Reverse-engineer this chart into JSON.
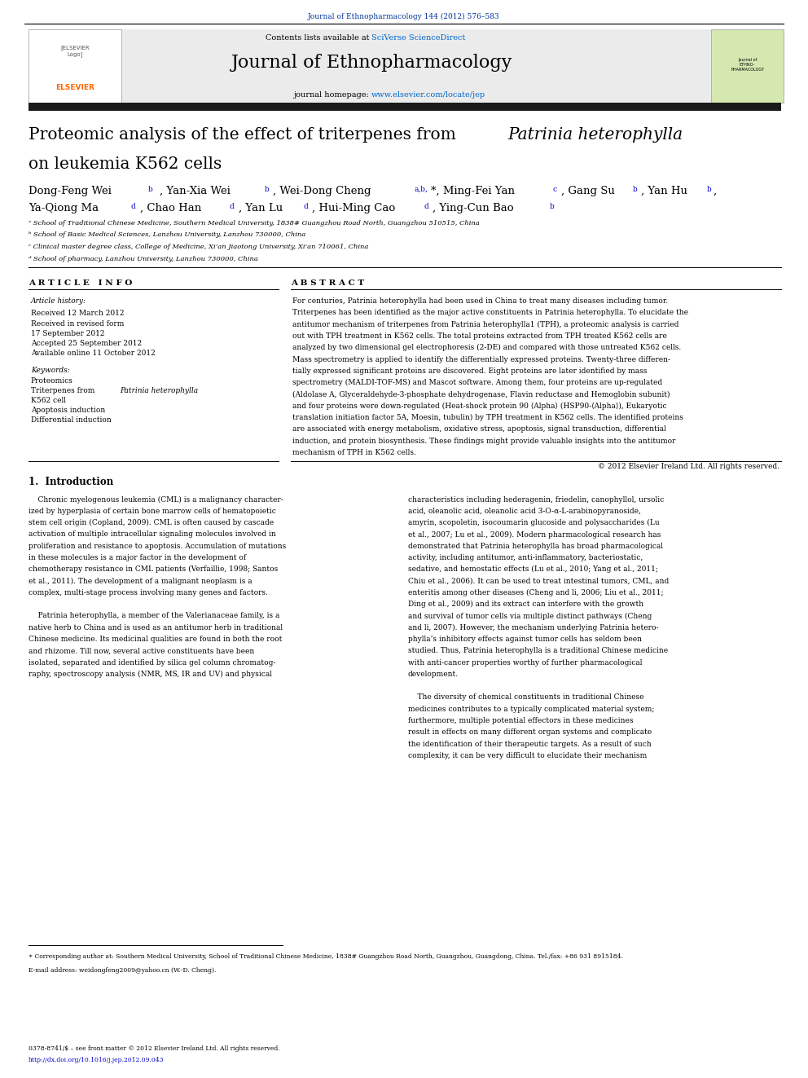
{
  "page_width": 9.92,
  "page_height": 13.23,
  "background_color": "#ffffff",
  "top_journal_ref": "Journal of Ethnopharmacology 144 (2012) 576–583",
  "top_journal_ref_color": "#003399",
  "header_bg": "#e8e8e8",
  "header_contents": "Contents lists available at",
  "header_sciversedirect": "SciVerse ScienceDirect",
  "header_sciversedirect_color": "#0066cc",
  "journal_name": "Journal of Ethnopharmacology",
  "journal_homepage_label": "journal homepage: ",
  "journal_homepage_url": "www.elsevier.com/locate/jep",
  "journal_homepage_url_color": "#0066cc",
  "thick_bar_color": "#1a1a1a",
  "article_title_line1": "Proteomic analysis of the effect of triterpenes from ",
  "article_title_italic": "Patrinia heterophylla",
  "article_title_line2": "on leukemia K562 cells",
  "authors_line1": "Dong-Feng Weiᵇ, Yan-Xia Weiᵇ, Wei-Dong Chengᵃ,ᵇ*, Ming-Fei Yanᶜ, Gang Suᵇ, Yan Huᵇ,",
  "authors_line2": "Ya-Qiong Maᵈ, Chao Hanᵈ, Yan Luᵈ, Hui-Ming Caoᵈ, Ying-Cun Baoᵇ",
  "affil_a": "ᵃ School of Traditional Chinese Medicine, Southern Medical University, 1838# Guangzhou Road North, Guangzhou 510515, China",
  "affil_b": "ᵇ School of Basic Medical Sciences, Lanzhou University, Lanzhou 730000, China",
  "affil_c": "ᶜ Clinical master degree class, College of Medicine, Xi’an Jiaotong University, Xi’an 710061, China",
  "affil_d": "ᵈ School of pharmacy, Lanzhou University, Lanzhou 730000, China",
  "article_info_header": "A R T I C L E   I N F O",
  "abstract_header": "A B S T R A C T",
  "article_history_label": "Article history:",
  "received1": "Received 12 March 2012",
  "received2": "Received in revised form",
  "received2b": "17 September 2012",
  "accepted": "Accepted 25 September 2012",
  "available": "Available online 11 October 2012",
  "keywords_label": "Keywords:",
  "kw1": "Proteomics",
  "kw2": "Triterpenes from Patrinia heterophylla",
  "kw3": "K562 cell",
  "kw4": "Apoptosis induction",
  "kw5": "Differential induction",
  "abstract_text": "For centuries, Patrinia heterophylla had been used in China to treat many diseases including tumor. Triterpenes has been identified as the major active constituents in Patrinia heterophylla. To elucidate the antitumor mechanism of triterpenes from Patrinia heterophylla1 (TPH), a proteomic analysis is carried out with TPH treatment in K562 cells. The total proteins extracted from TPH treated K562 cells are analyzed by two dimensional gel electrophoresis (2-DE) and compared with those untreated K562 cells. Mass spectrometry is applied to identify the differentially expressed proteins. Twenty-three differentially expressed significant proteins are discovered. Eight proteins are later identified by mass spectrometry (MALDI-TOF-MS) and Mascot software. Among them, four proteins are up-regulated (Aldolase A, Glyceraldehyde-3-phosphate dehydrogenase, Flavin reductase and Hemoglobin subunit) and four proteins were down-regulated (Heat-shock protein 90 ⟨Alpha⟩ (HSP90-⟨Alpha⟩), Eukaryotic translation initiation factor 5A, Moesin, tubulin) by TPH treatment in K562 cells. The identified proteins are associated with energy metabolism, oxidative stress, apoptosis, signal transduction, differential induction, and protein biosynthesis. These findings might provide valuable insights into the antitumor mechanism of TPH in K562 cells.",
  "copyright": "© 2012 Elsevier Ireland Ltd. All rights reserved.",
  "intro_header": "1.  Introduction",
  "intro_left": "Chronic myelogenous leukemia (CML) is a malignancy characterized by hyperplasia of certain bone marrow cells of hematopoietic stem cell origin (Copland, 2009). CML is often caused by cascade activation of multiple intracellular signaling molecules involved in proliferation and resistance to apoptosis. Accumulation of mutations in these molecules is a major factor in the development of chemotherapy resistance in CML patients (Verfaillie, 1998; Santos et al., 2011). The development of a malignant neoplasm is a complex, multi-stage process involving many genes and factors.\n\nPatrinia heterophylla, a member of the Valerianaceae family, is a native herb to China and is used as an antitumor herb in traditional Chinese medicine. Its medicinal qualities are found in both the root and rhizome. Till now, several active constituents have been isolated, separated and identified by silica gel column chromatography, spectroscopy analysis (NMR, MS, IR and UV) and physical",
  "intro_right": "characteristics including hederagenin, friedelin, canophyllol, ursolic acid, oleanolic acid, oleanolic acid 3-O-α-L-arabinopyranoside, amyrin, scopoletin, isocoumarin glucoside and polysaccharides (Lu et al., 2007; Lu et al., 2009). Modern pharmacological research has demonstrated that Patrinia heterophylla has broad pharmacological activity, including antitumor, anti-inflammatory, bacteriostatic, sedative, and hemostatic effects (Lu et al., 2010; Yang et al., 2011; Chiu et al., 2006). It can be used to treat intestinal tumors, CML, and enteritis among other diseases (Cheng and li, 2006; Liu et al., 2011; Ding et al., 2009) and its extract can interfere with the growth and survival of tumor cells via multiple distinct pathways (Cheng and li, 2007). However, the mechanism underlying Patrinia heterophylla’s inhibitory effects against tumor cells has seldom been studied. Thus, Patrinia heterophylla is a traditional Chinese medicine with anti-cancer properties worthy of further pharmacological development.\n\nThe diversity of chemical constituents in traditional Chinese medicines contributes to a typically complicated material system; furthermore, multiple potential effectors in these medicines result in effects on many different organ systems and complicate the identification of their therapeutic targets. As a result of such complexity, it can be very difficult to elucidate their mechanism",
  "footnote_line1": "∗ Corresponding author at: Southern Medical University, School of Traditional Chinese Medicine, 1838# Guangzhou Road North, Guangzhou, Guangdong, China. Tel./fax: +86 931 8915184.",
  "footnote_email": "E-mail address: weidongfeng2009@yahoo.cn (W.-D. Cheng).",
  "footnote_issn": "0378-8741/$ – see front matter © 2012 Elsevier Ireland Ltd. All rights reserved.",
  "footnote_doi": "http://dx.doi.org/10.1016/j.jep.2012.09.043",
  "link_color": "#0000cc"
}
